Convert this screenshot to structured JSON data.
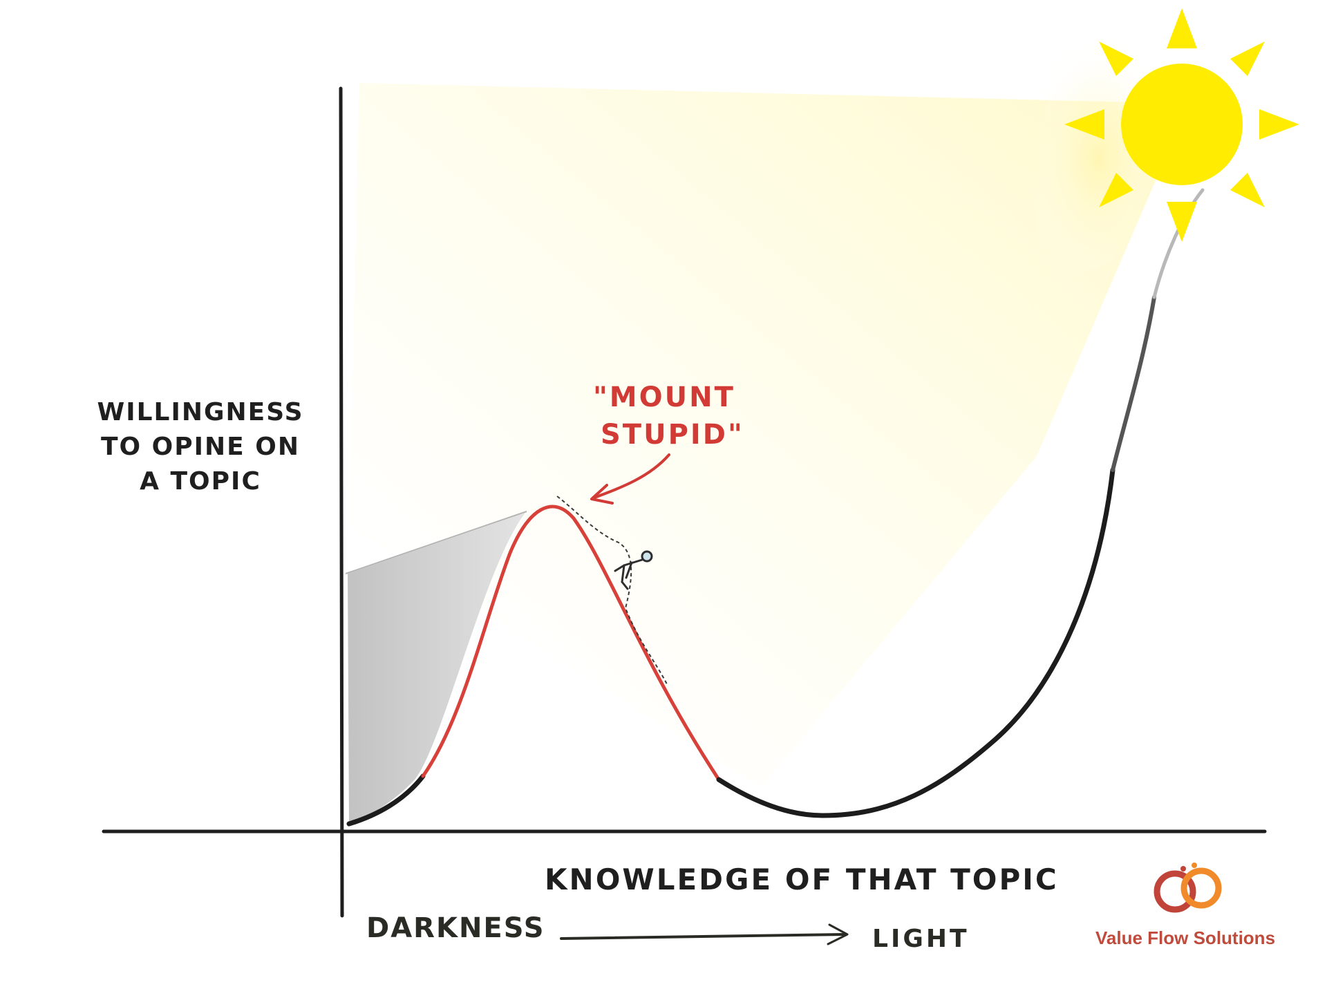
{
  "diagram": {
    "y_axis_label": [
      "WILLINGNESS",
      "TO OPINE ON",
      "A TOPIC"
    ],
    "x_axis_label": "KNOWLEDGE OF THAT TOPIC",
    "peak_annotation": [
      "\"MOUNT",
      "STUPID\""
    ],
    "scale_start": "DARKNESS",
    "scale_end": "LIGHT"
  },
  "branding": {
    "company_name": "Value Flow Solutions",
    "logo_icon": "two-interlinked-rings-logo-icon"
  },
  "colors": {
    "curve": "#1c1c1c",
    "highlight_curve": "#d8403a",
    "annotation": "#d23a35",
    "sun": "#ffec00",
    "shade": "#c8c8c8",
    "brand": "#bf4b3c",
    "logo_ring_1": "#c0443a",
    "logo_ring_2": "#f08a2a"
  }
}
